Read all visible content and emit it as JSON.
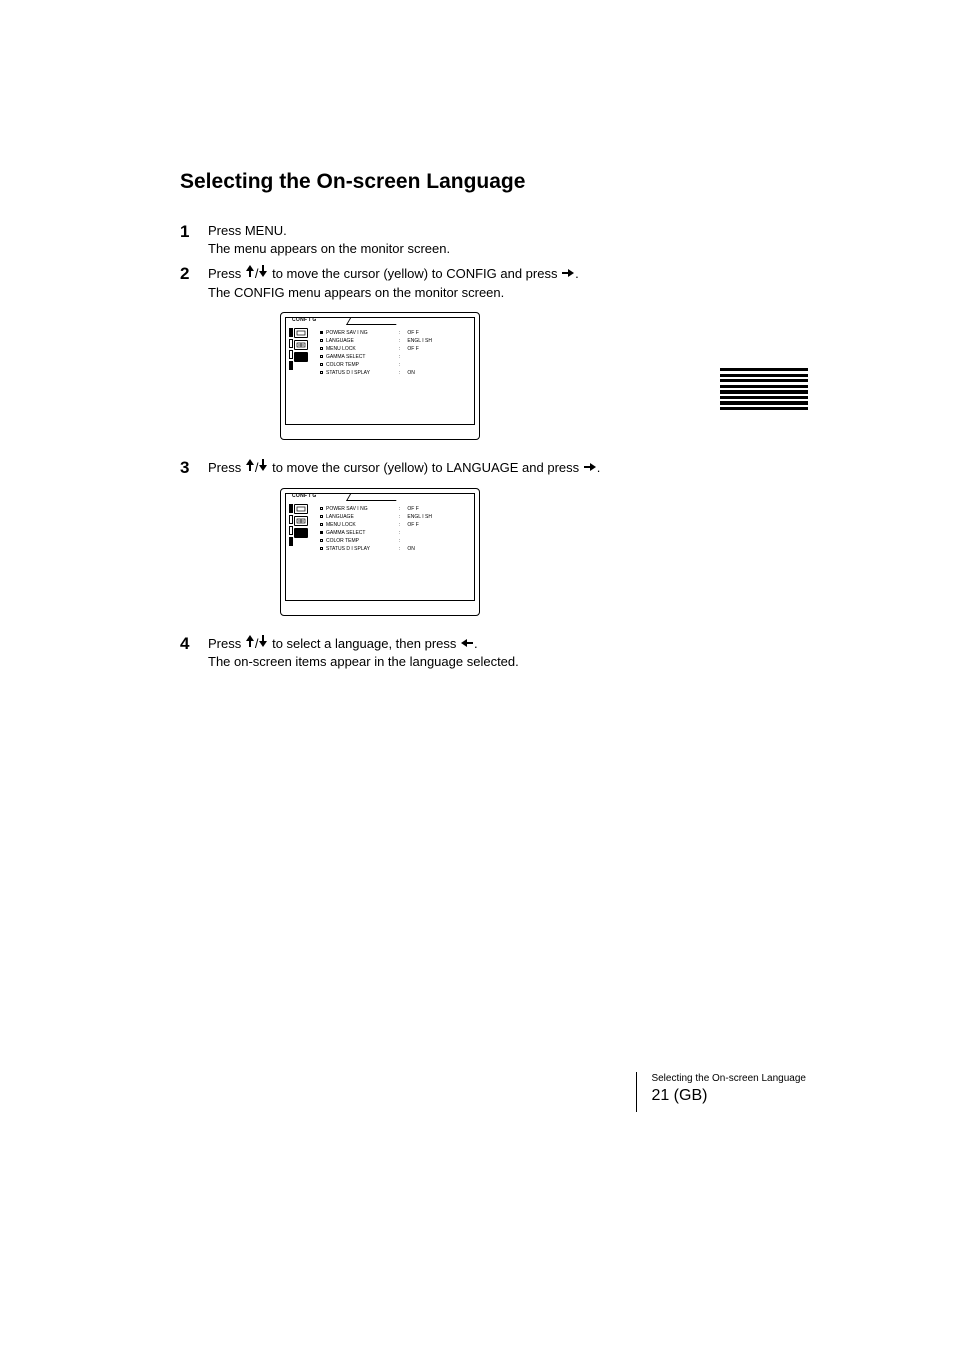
{
  "title": "Selecting the On-screen Language",
  "steps": [
    {
      "num": "1",
      "text_before": "Press MENU.",
      "text_after": "The menu appears on the monitor screen."
    },
    {
      "num": "2",
      "text_before": "Press ",
      "text_mid": " to move the cursor (yellow) to CONFIG and press ",
      "text_after": ".",
      "has_arrows_updown": true,
      "has_arrow_right": true,
      "post": "The CONFIG menu appears on the monitor screen."
    },
    {
      "num": "3",
      "text_before": "Press ",
      "text_mid": " to move the cursor (yellow) to LANGUAGE and press ",
      "text_after": ".",
      "has_arrows_updown": true,
      "has_arrow_right": true
    },
    {
      "num": "4",
      "text_before": "Press ",
      "text_mid": " to select a language, then press ",
      "text_after": ".",
      "has_arrows_updown": true,
      "has_arrow_left": true,
      "post": "The on-screen items appear in the language selected."
    }
  ],
  "screen1": {
    "tab": "CONF I G",
    "leftbars": [
      true,
      false,
      false,
      true
    ],
    "icons": [
      "rect",
      "plus",
      "card"
    ],
    "iconSelected": 2,
    "rows": [
      {
        "sel": true,
        "l": "POWER  SAV I NG",
        "v": "OF F"
      },
      {
        "sel": false,
        "l": "LANGUAGE",
        "v": "ENGL I SH"
      },
      {
        "sel": false,
        "l": "MENU  LOCK",
        "v": "OF F"
      },
      {
        "sel": false,
        "l": "GAMMA  SELECT",
        "v": ""
      },
      {
        "sel": false,
        "l": "COLOR  TEMP",
        "v": ""
      },
      {
        "sel": false,
        "l": "STATUS  D I SPLAY",
        "v": "ON"
      }
    ]
  },
  "screen2": {
    "tab": "CONF I G",
    "leftbars": [
      true,
      false,
      false,
      true
    ],
    "icons": [
      "rect",
      "plus",
      "card"
    ],
    "iconSelected": 2,
    "rows": [
      {
        "sel": false,
        "l": "POWER  SAV I NG",
        "v": "OF F"
      },
      {
        "sel": false,
        "l": "LANGUAGE",
        "v": "ENGL I SH"
      },
      {
        "sel": false,
        "l": "MENU  LOCK",
        "v": "OF F"
      },
      {
        "sel": true,
        "l": "GAMMA  SELECT",
        "v": ""
      },
      {
        "sel": false,
        "l": "COLOR  TEMP",
        "v": ""
      },
      {
        "sel": false,
        "l": "STATUS  D I SPLAY",
        "v": "ON"
      }
    ]
  },
  "side_label": "On-screen Menu Adjustments",
  "footer_text": "Selecting the On-screen Language",
  "footer_page": "21 (GB)"
}
